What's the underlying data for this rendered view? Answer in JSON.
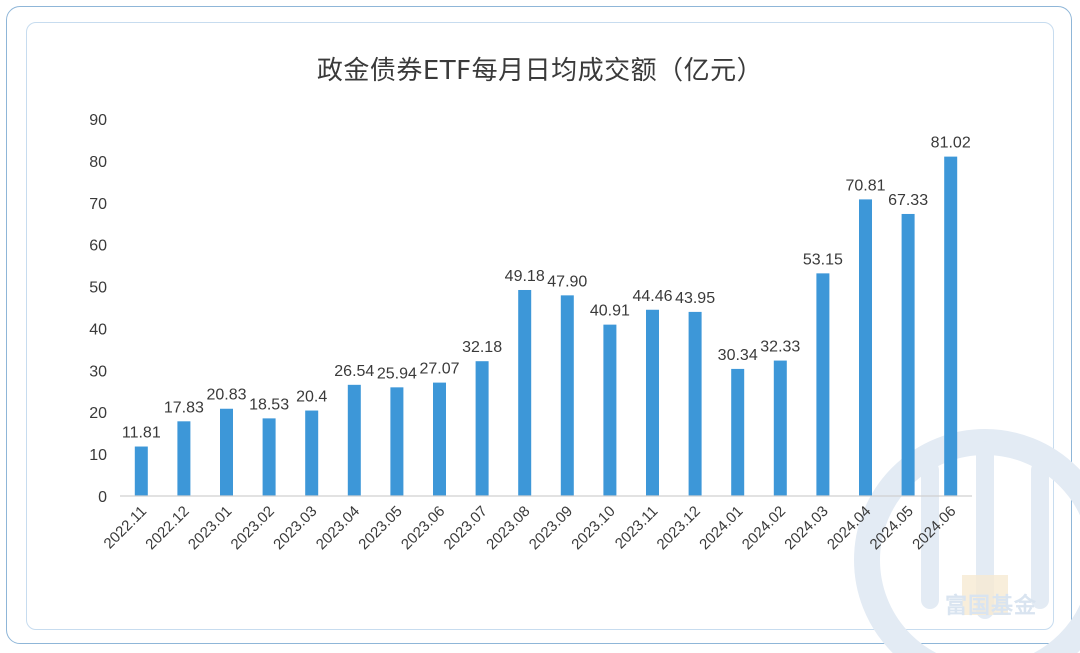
{
  "chart_data": {
    "type": "bar",
    "title": "政金债券ETF每月日均成交额（亿元）",
    "xlabel": "",
    "ylabel": "",
    "ylim": [
      0,
      90
    ],
    "yticks": [
      0,
      10,
      20,
      30,
      40,
      50,
      60,
      70,
      80,
      90
    ],
    "grid": false,
    "categories": [
      "2022.11",
      "2022.12",
      "2023.01",
      "2023.02",
      "2023.03",
      "2023.04",
      "2023.05",
      "2023.06",
      "2023.07",
      "2023.08",
      "2023.09",
      "2023.10",
      "2023.11",
      "2023.12",
      "2024.01",
      "2024.02",
      "2024.03",
      "2024.04",
      "2024.05",
      "2024.06"
    ],
    "values": [
      11.81,
      17.83,
      20.83,
      18.53,
      20.4,
      26.54,
      25.94,
      27.07,
      32.18,
      49.18,
      47.9,
      40.91,
      44.46,
      43.95,
      30.34,
      32.33,
      53.15,
      70.81,
      67.33,
      81.02
    ],
    "value_labels": [
      "11.81",
      "17.83",
      "20.83",
      "18.53",
      "20.4",
      "26.54",
      "25.94",
      "27.07",
      "32.18",
      "49.18",
      "47.90",
      "40.91",
      "44.46",
      "43.95",
      "30.34",
      "32.33",
      "53.15",
      "70.81",
      "67.33",
      "81.02"
    ],
    "bar_color": "#3d97d8"
  },
  "watermark": {
    "text": "富国基金",
    "color": "#d9e4f0"
  }
}
